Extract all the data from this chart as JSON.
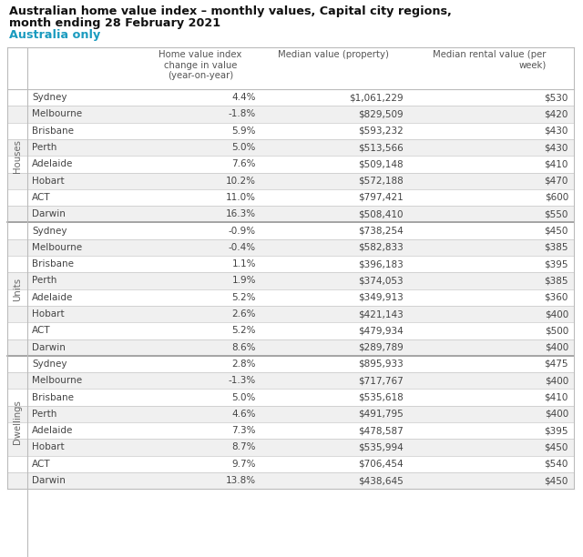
{
  "title_line1": "Australian home value index – monthly values, Capital city regions,",
  "title_line2": "month ending 28 February 2021",
  "title_line3": "Australia only",
  "col_headers": [
    "",
    "Home value index\nchange in value\n(year-on-year)",
    "Median value (property)",
    "Median rental value (per\nweek)"
  ],
  "sections": [
    {
      "label": "Houses",
      "rows": [
        [
          "Sydney",
          "4.4%",
          "$1,061,229",
          "$530"
        ],
        [
          "Melbourne",
          "-1.8%",
          "$829,509",
          "$420"
        ],
        [
          "Brisbane",
          "5.9%",
          "$593,232",
          "$430"
        ],
        [
          "Perth",
          "5.0%",
          "$513,566",
          "$430"
        ],
        [
          "Adelaide",
          "7.6%",
          "$509,148",
          "$410"
        ],
        [
          "Hobart",
          "10.2%",
          "$572,188",
          "$470"
        ],
        [
          "ACT",
          "11.0%",
          "$797,421",
          "$600"
        ],
        [
          "Darwin",
          "16.3%",
          "$508,410",
          "$550"
        ]
      ]
    },
    {
      "label": "Units",
      "rows": [
        [
          "Sydney",
          "-0.9%",
          "$738,254",
          "$450"
        ],
        [
          "Melbourne",
          "-0.4%",
          "$582,833",
          "$385"
        ],
        [
          "Brisbane",
          "1.1%",
          "$396,183",
          "$395"
        ],
        [
          "Perth",
          "1.9%",
          "$374,053",
          "$385"
        ],
        [
          "Adelaide",
          "5.2%",
          "$349,913",
          "$360"
        ],
        [
          "Hobart",
          "2.6%",
          "$421,143",
          "$400"
        ],
        [
          "ACT",
          "5.2%",
          "$479,934",
          "$500"
        ],
        [
          "Darwin",
          "8.6%",
          "$289,789",
          "$400"
        ]
      ]
    },
    {
      "label": "Dwellings",
      "rows": [
        [
          "Sydney",
          "2.8%",
          "$895,933",
          "$475"
        ],
        [
          "Melbourne",
          "-1.3%",
          "$717,767",
          "$400"
        ],
        [
          "Brisbane",
          "5.0%",
          "$535,618",
          "$410"
        ],
        [
          "Perth",
          "4.6%",
          "$491,795",
          "$400"
        ],
        [
          "Adelaide",
          "7.3%",
          "$478,587",
          "$395"
        ],
        [
          "Hobart",
          "8.7%",
          "$535,994",
          "$450"
        ],
        [
          "ACT",
          "9.7%",
          "$706,454",
          "$540"
        ],
        [
          "Darwin",
          "13.8%",
          "$438,645",
          "$450"
        ]
      ]
    }
  ],
  "bg_color": "#ffffff",
  "row_alt_color": "#f0f0f0",
  "row_white": "#ffffff",
  "text_color": "#444444",
  "title_color": "#111111",
  "subtitle_color": "#1a9bbf",
  "border_color": "#bbbbbb",
  "section_border_color": "#999999",
  "section_label_color": "#666666",
  "header_text_color": "#555555"
}
